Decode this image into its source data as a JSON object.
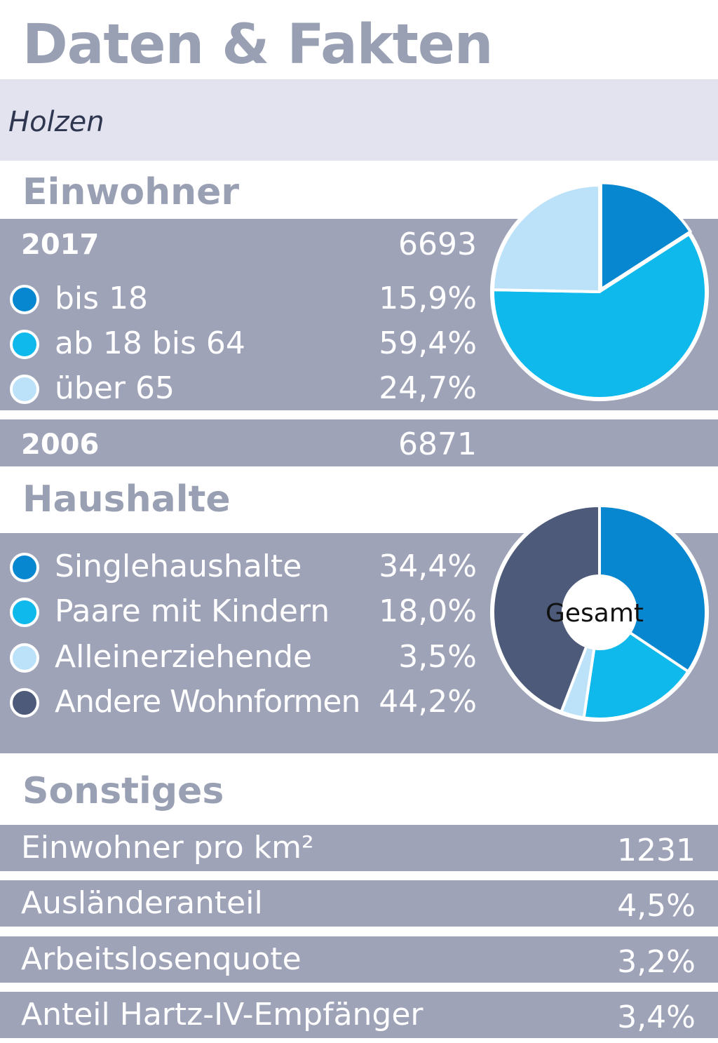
{
  "title": "Daten & Fakten",
  "place": "Holzen",
  "einwohner": {
    "heading": "Einwohner",
    "year_2017": {
      "label": "2017",
      "value": "6693"
    },
    "year_2006": {
      "label": "2006",
      "value": "6871"
    },
    "groups": [
      {
        "label": "bis 18",
        "value_text": "15,9%",
        "color": "#0787cf"
      },
      {
        "label": "ab 18 bis 64",
        "value_text": "59,4%",
        "color": "#0fb9ec"
      },
      {
        "label": "über 65",
        "value_text": "24,7%",
        "color": "#bce2f9"
      }
    ]
  },
  "haushalte": {
    "heading": "Haushalte",
    "center_label": "Gesamt",
    "groups": [
      {
        "label": "Singlehaushalte",
        "value_text": "34,4%",
        "color": "#0787cf"
      },
      {
        "label": "Paare mit Kindern",
        "value_text": "18,0%",
        "color": "#0fb9ec"
      },
      {
        "label": "Alleinerziehende",
        "value_text": "3,5%",
        "color": "#bce2f9"
      },
      {
        "label": "Andere Wohnformen",
        "value_text": "44,2%",
        "color": "#4d5a79"
      }
    ]
  },
  "sonstiges": {
    "heading": "Sonstiges",
    "rows": [
      {
        "label": "Einwohner pro km²",
        "value": "1231"
      },
      {
        "label": "Ausländeranteil",
        "value": "4,5%"
      },
      {
        "label": "Arbeitslosenquote",
        "value": "3,2%"
      },
      {
        "label": "Anteil Hartz-IV-Empfänger",
        "value": "3,4%"
      }
    ]
  },
  "chart_data": [
    {
      "type": "pie",
      "categories": [
        "bis 18",
        "ab 18 bis 64",
        "über 65"
      ],
      "values": [
        15.9,
        59.4,
        24.7
      ],
      "colors": [
        "#0787cf",
        "#0fb9ec",
        "#bce2f9"
      ]
    },
    {
      "type": "pie",
      "donut": true,
      "center_label": "Gesamt",
      "categories": [
        "Singlehaushalte",
        "Paare mit Kindern",
        "Alleinerziehende",
        "Andere Wohnformen"
      ],
      "values": [
        34.4,
        18.0,
        3.5,
        44.2
      ],
      "colors": [
        "#0787cf",
        "#0fb9ec",
        "#bce2f9",
        "#4d5a79"
      ]
    }
  ]
}
